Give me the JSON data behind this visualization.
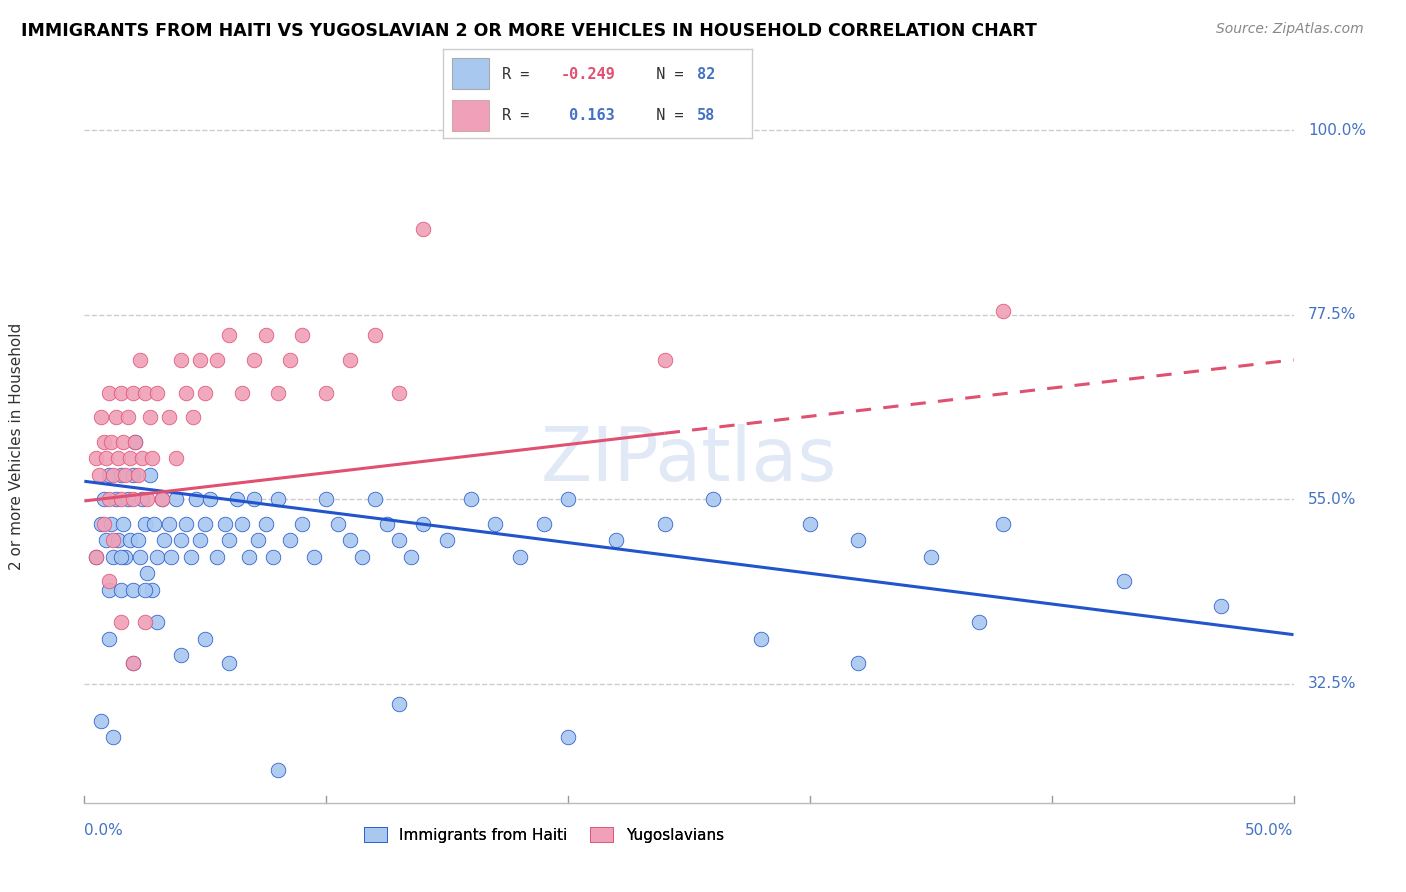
{
  "title": "IMMIGRANTS FROM HAITI VS YUGOSLAVIAN 2 OR MORE VEHICLES IN HOUSEHOLD CORRELATION CHART",
  "source": "Source: ZipAtlas.com",
  "ylabel": "2 or more Vehicles in Household",
  "color_haiti": "#a8c8f0",
  "color_yugo": "#f0a0b8",
  "trendline_haiti_color": "#2255cc",
  "trendline_yugo_color": "#e05070",
  "watermark": "ZIPatlas",
  "xmin": 0.0,
  "xmax": 0.5,
  "ymin": 0.18,
  "ymax": 1.05,
  "ytick_vals": [
    0.325,
    0.55,
    0.775,
    1.0
  ],
  "ytick_labels": [
    "32.5%",
    "55.0%",
    "77.5%",
    "100.0%"
  ],
  "haiti_trendline": [
    0.0,
    0.572,
    0.5,
    0.385
  ],
  "yugo_trendline": [
    0.0,
    0.548,
    0.5,
    0.72
  ],
  "haiti_scatter": [
    [
      0.005,
      0.48
    ],
    [
      0.007,
      0.52
    ],
    [
      0.008,
      0.55
    ],
    [
      0.009,
      0.5
    ],
    [
      0.01,
      0.58
    ],
    [
      0.01,
      0.44
    ],
    [
      0.011,
      0.52
    ],
    [
      0.012,
      0.48
    ],
    [
      0.013,
      0.55
    ],
    [
      0.014,
      0.5
    ],
    [
      0.015,
      0.58
    ],
    [
      0.015,
      0.44
    ],
    [
      0.016,
      0.52
    ],
    [
      0.017,
      0.48
    ],
    [
      0.018,
      0.55
    ],
    [
      0.019,
      0.5
    ],
    [
      0.02,
      0.58
    ],
    [
      0.02,
      0.44
    ],
    [
      0.021,
      0.62
    ],
    [
      0.022,
      0.5
    ],
    [
      0.023,
      0.48
    ],
    [
      0.024,
      0.55
    ],
    [
      0.025,
      0.52
    ],
    [
      0.026,
      0.46
    ],
    [
      0.027,
      0.58
    ],
    [
      0.028,
      0.44
    ],
    [
      0.029,
      0.52
    ],
    [
      0.03,
      0.48
    ],
    [
      0.032,
      0.55
    ],
    [
      0.033,
      0.5
    ],
    [
      0.035,
      0.52
    ],
    [
      0.036,
      0.48
    ],
    [
      0.038,
      0.55
    ],
    [
      0.04,
      0.5
    ],
    [
      0.042,
      0.52
    ],
    [
      0.044,
      0.48
    ],
    [
      0.046,
      0.55
    ],
    [
      0.048,
      0.5
    ],
    [
      0.05,
      0.52
    ],
    [
      0.052,
      0.55
    ],
    [
      0.055,
      0.48
    ],
    [
      0.058,
      0.52
    ],
    [
      0.06,
      0.5
    ],
    [
      0.063,
      0.55
    ],
    [
      0.065,
      0.52
    ],
    [
      0.068,
      0.48
    ],
    [
      0.07,
      0.55
    ],
    [
      0.072,
      0.5
    ],
    [
      0.075,
      0.52
    ],
    [
      0.078,
      0.48
    ],
    [
      0.08,
      0.55
    ],
    [
      0.085,
      0.5
    ],
    [
      0.09,
      0.52
    ],
    [
      0.095,
      0.48
    ],
    [
      0.1,
      0.55
    ],
    [
      0.105,
      0.52
    ],
    [
      0.11,
      0.5
    ],
    [
      0.115,
      0.48
    ],
    [
      0.12,
      0.55
    ],
    [
      0.125,
      0.52
    ],
    [
      0.13,
      0.5
    ],
    [
      0.135,
      0.48
    ],
    [
      0.14,
      0.52
    ],
    [
      0.15,
      0.5
    ],
    [
      0.16,
      0.55
    ],
    [
      0.17,
      0.52
    ],
    [
      0.18,
      0.48
    ],
    [
      0.19,
      0.52
    ],
    [
      0.2,
      0.55
    ],
    [
      0.22,
      0.5
    ],
    [
      0.24,
      0.52
    ],
    [
      0.26,
      0.55
    ],
    [
      0.3,
      0.52
    ],
    [
      0.32,
      0.5
    ],
    [
      0.35,
      0.48
    ],
    [
      0.38,
      0.52
    ],
    [
      0.01,
      0.38
    ],
    [
      0.02,
      0.35
    ],
    [
      0.03,
      0.4
    ],
    [
      0.04,
      0.36
    ],
    [
      0.05,
      0.38
    ],
    [
      0.06,
      0.35
    ],
    [
      0.007,
      0.28
    ],
    [
      0.012,
      0.26
    ],
    [
      0.08,
      0.22
    ],
    [
      0.13,
      0.3
    ],
    [
      0.2,
      0.26
    ],
    [
      0.28,
      0.38
    ],
    [
      0.32,
      0.35
    ],
    [
      0.37,
      0.4
    ],
    [
      0.43,
      0.45
    ],
    [
      0.47,
      0.42
    ],
    [
      0.015,
      0.48
    ],
    [
      0.025,
      0.44
    ]
  ],
  "yugo_scatter": [
    [
      0.005,
      0.6
    ],
    [
      0.006,
      0.58
    ],
    [
      0.007,
      0.65
    ],
    [
      0.008,
      0.62
    ],
    [
      0.009,
      0.6
    ],
    [
      0.01,
      0.68
    ],
    [
      0.01,
      0.55
    ],
    [
      0.011,
      0.62
    ],
    [
      0.012,
      0.58
    ],
    [
      0.013,
      0.65
    ],
    [
      0.014,
      0.6
    ],
    [
      0.015,
      0.68
    ],
    [
      0.015,
      0.55
    ],
    [
      0.016,
      0.62
    ],
    [
      0.017,
      0.58
    ],
    [
      0.018,
      0.65
    ],
    [
      0.019,
      0.6
    ],
    [
      0.02,
      0.68
    ],
    [
      0.02,
      0.55
    ],
    [
      0.021,
      0.62
    ],
    [
      0.022,
      0.58
    ],
    [
      0.023,
      0.72
    ],
    [
      0.024,
      0.6
    ],
    [
      0.025,
      0.68
    ],
    [
      0.026,
      0.55
    ],
    [
      0.027,
      0.65
    ],
    [
      0.028,
      0.6
    ],
    [
      0.03,
      0.68
    ],
    [
      0.032,
      0.55
    ],
    [
      0.035,
      0.65
    ],
    [
      0.038,
      0.6
    ],
    [
      0.04,
      0.72
    ],
    [
      0.042,
      0.68
    ],
    [
      0.045,
      0.65
    ],
    [
      0.048,
      0.72
    ],
    [
      0.05,
      0.68
    ],
    [
      0.055,
      0.72
    ],
    [
      0.06,
      0.75
    ],
    [
      0.065,
      0.68
    ],
    [
      0.07,
      0.72
    ],
    [
      0.075,
      0.75
    ],
    [
      0.08,
      0.68
    ],
    [
      0.085,
      0.72
    ],
    [
      0.09,
      0.75
    ],
    [
      0.1,
      0.68
    ],
    [
      0.11,
      0.72
    ],
    [
      0.12,
      0.75
    ],
    [
      0.13,
      0.68
    ],
    [
      0.14,
      0.88
    ],
    [
      0.005,
      0.48
    ],
    [
      0.008,
      0.52
    ],
    [
      0.01,
      0.45
    ],
    [
      0.012,
      0.5
    ],
    [
      0.015,
      0.4
    ],
    [
      0.02,
      0.35
    ],
    [
      0.025,
      0.4
    ],
    [
      0.24,
      0.72
    ],
    [
      0.38,
      0.78
    ]
  ]
}
